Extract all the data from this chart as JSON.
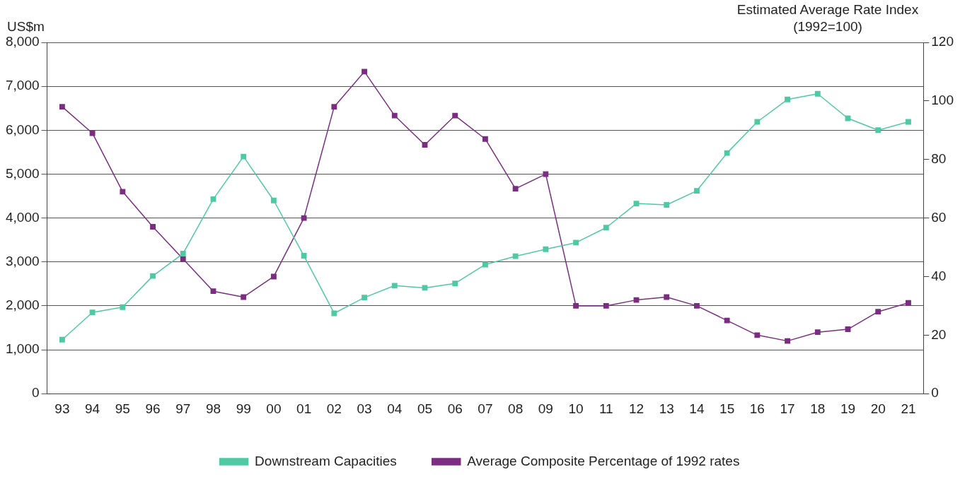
{
  "chart_data": {
    "type": "line",
    "ylabel": "US$m",
    "y2label": "Estimated Average Rate Index\n(1992=100)",
    "categories": [
      "93",
      "94",
      "95",
      "96",
      "97",
      "98",
      "99",
      "00",
      "01",
      "02",
      "03",
      "04",
      "05",
      "06",
      "07",
      "08",
      "09",
      "10",
      "11",
      "12",
      "13",
      "14",
      "15",
      "16",
      "17",
      "18",
      "19",
      "20",
      "21"
    ],
    "series": [
      {
        "name": "Downstream Capacities",
        "color": "#4fc9a4",
        "values": [
          1230,
          1850,
          1970,
          2680,
          3190,
          4430,
          5400,
          4400,
          3140,
          1830,
          2190,
          2460,
          2410,
          2510,
          2940,
          3130,
          3290,
          3440,
          3780,
          4330,
          4300,
          4620,
          5480,
          6190,
          6700,
          6830,
          6270,
          6000,
          6190
        ]
      },
      {
        "name": "Average Composite Percentage of 1992 rates",
        "color": "#7b2d82",
        "axis": "y2",
        "values": [
          98,
          89,
          69,
          57,
          46,
          35,
          33,
          40,
          60,
          98,
          110,
          95,
          85,
          95,
          87,
          70,
          75,
          30,
          30,
          32,
          33,
          30,
          25,
          20,
          18,
          21,
          22,
          28,
          31
        ]
      }
    ],
    "ylim": [
      0,
      8000
    ],
    "yticks": [
      0,
      {
        "value": 1000,
        "label": "1,000"
      },
      {
        "value": 2000,
        "label": "2,000"
      },
      {
        "value": 3000,
        "label": "3,000"
      },
      {
        "value": 4000,
        "label": "4,000"
      },
      {
        "value": 5000,
        "label": "5,000"
      },
      {
        "value": 6000,
        "label": "6,000"
      },
      {
        "value": 7000,
        "label": "7,000"
      },
      {
        "value": 8000,
        "label": "8,000"
      }
    ],
    "y2lim": [
      0,
      120
    ],
    "y2ticks": [
      0,
      20,
      40,
      60,
      80,
      100,
      120
    ],
    "grid": "y",
    "legend": "bottom",
    "marker": "square",
    "line_style": "solid"
  }
}
